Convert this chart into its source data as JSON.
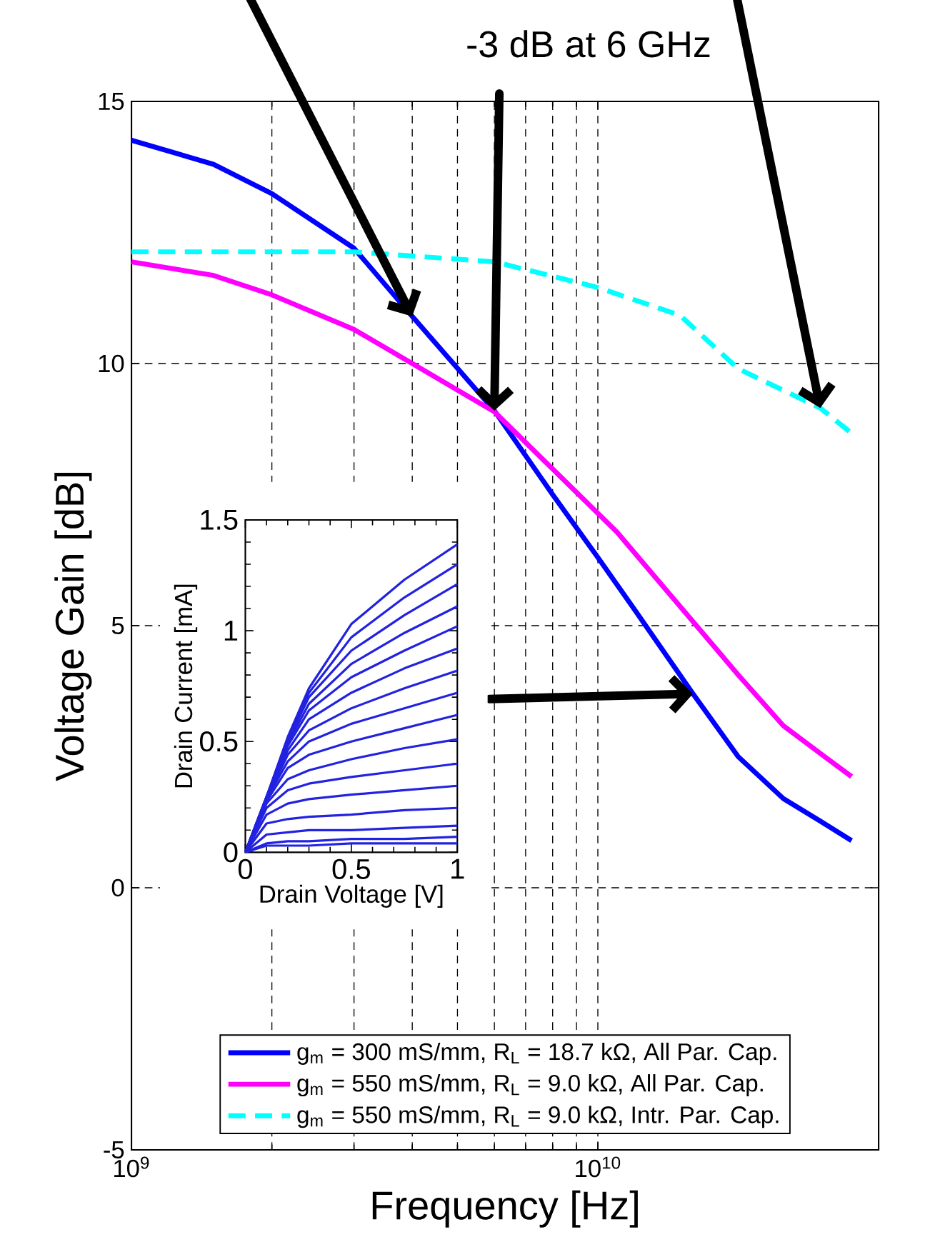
{
  "chart_data": [
    {
      "type": "line",
      "xlabel": "Frequency [Hz]",
      "ylabel": "Voltage Gain [dB]",
      "annotations": [
        "-3 dB at 6 GHz"
      ],
      "log": "x",
      "xlim": [
        1000000000.0,
        40000000000.0
      ],
      "ylim": [
        -5,
        15
      ],
      "xticks": [
        {
          "value": 1000000000.0,
          "label": "10$^{9}$"
        },
        {
          "value": 10000000000.0,
          "label": "10$^{10}$"
        }
      ],
      "yticks": [
        -5,
        0,
        5,
        10,
        15
      ],
      "grid": true,
      "legend": "bottom",
      "series": [
        {
          "name": "g$_{m}$ = 300 mS/mm, R$_{L}$ = 18.7 kΩ, All Par. Cap.",
          "color": "#0000ff",
          "line_style": "solid",
          "x": [
            1000000000.0,
            1500000000.0,
            2000000000.0,
            3000000000.0,
            4000000000.0,
            6000000000.0,
            8000000000.0,
            10000000000.0,
            12000000000.0,
            16000000000.0,
            20000000000.0,
            25000000000.0,
            30000000000.0,
            35000000000.0
          ],
          "values": [
            14.26,
            13.8,
            13.24,
            12.2,
            10.9,
            9.1,
            7.5,
            6.3,
            5.3,
            3.7,
            2.5,
            1.7,
            1.27,
            0.9
          ]
        },
        {
          "name": "g$_{m}$ = 550 mS/mm, R$_{L}$ = 9.0 kΩ, All Par. Cap.",
          "color": "#ff00ff",
          "line_style": "solid",
          "x": [
            1000000000.0,
            1500000000.0,
            2000000000.0,
            3000000000.0,
            4000000000.0,
            6000000000.0,
            11000000000.0,
            20000000000.0,
            25000000000.0,
            30000000000.0,
            35000000000.0
          ],
          "values": [
            11.94,
            11.68,
            11.31,
            10.65,
            10.0,
            9.08,
            6.78,
            4.06,
            3.09,
            2.56,
            2.12
          ]
        },
        {
          "name": "g$_{m}$ = 550 mS/mm, R$_{L}$ = 9.0 kΩ, Intr. Par. Cap.",
          "color": "#00ffff",
          "line_style": "dashed",
          "x": [
            1000000000.0,
            2000000000.0,
            3000000000.0,
            6000000000.0,
            10000000000.0,
            15000000000.0,
            20000000000.0,
            30000000000.0,
            35000000000.0
          ],
          "values": [
            12.13,
            12.13,
            12.13,
            11.94,
            11.45,
            10.92,
            9.9,
            9.15,
            8.67
          ]
        }
      ]
    },
    {
      "type": "line",
      "xlabel": "Drain Voltage [V]",
      "ylabel": "Drain Current [mA]",
      "xlim": [
        0,
        1
      ],
      "ylim": [
        0,
        1.5
      ],
      "xticks": [
        0,
        0.5,
        1
      ],
      "yticks": [
        0,
        0.5,
        1,
        1.5
      ],
      "x": [
        0,
        0.1,
        0.2,
        0.3,
        0.5,
        0.75,
        1
      ],
      "series": [
        {
          "color": "#2222e0",
          "values": [
            0,
            0.25,
            0.52,
            0.74,
            1.03,
            1.23,
            1.39
          ]
        },
        {
          "color": "#2222e0",
          "values": [
            0,
            0.25,
            0.51,
            0.72,
            0.97,
            1.15,
            1.3
          ]
        },
        {
          "color": "#2222e0",
          "values": [
            0,
            0.25,
            0.5,
            0.7,
            0.91,
            1.07,
            1.21
          ]
        },
        {
          "color": "#2222e0",
          "values": [
            0,
            0.25,
            0.49,
            0.67,
            0.85,
            0.99,
            1.11
          ]
        },
        {
          "color": "#2222e0",
          "values": [
            0,
            0.25,
            0.48,
            0.64,
            0.79,
            0.91,
            1.02
          ]
        },
        {
          "color": "#2222e0",
          "values": [
            0,
            0.25,
            0.46,
            0.6,
            0.72,
            0.83,
            0.92
          ]
        },
        {
          "color": "#2222e0",
          "values": [
            0,
            0.24,
            0.44,
            0.55,
            0.65,
            0.74,
            0.82
          ]
        },
        {
          "color": "#2222e0",
          "values": [
            0,
            0.24,
            0.41,
            0.5,
            0.58,
            0.65,
            0.72
          ]
        },
        {
          "color": "#2222e0",
          "values": [
            0,
            0.23,
            0.38,
            0.44,
            0.5,
            0.56,
            0.62
          ]
        },
        {
          "color": "#2222e0",
          "values": [
            0,
            0.22,
            0.33,
            0.37,
            0.42,
            0.47,
            0.51
          ]
        },
        {
          "color": "#2222e0",
          "values": [
            0,
            0.2,
            0.28,
            0.31,
            0.34,
            0.37,
            0.4
          ]
        },
        {
          "color": "#2222e0",
          "values": [
            0,
            0.17,
            0.22,
            0.24,
            0.26,
            0.28,
            0.3
          ]
        },
        {
          "color": "#2222e0",
          "values": [
            0,
            0.13,
            0.15,
            0.16,
            0.17,
            0.19,
            0.2
          ]
        },
        {
          "color": "#2222e0",
          "values": [
            0,
            0.08,
            0.09,
            0.1,
            0.1,
            0.11,
            0.12
          ]
        },
        {
          "color": "#2222e0",
          "values": [
            0,
            0.04,
            0.05,
            0.05,
            0.06,
            0.06,
            0.07
          ]
        },
        {
          "color": "#2222e0",
          "values": [
            0,
            0.03,
            0.03,
            0.03,
            0.04,
            0.04,
            0.04
          ]
        }
      ]
    }
  ]
}
